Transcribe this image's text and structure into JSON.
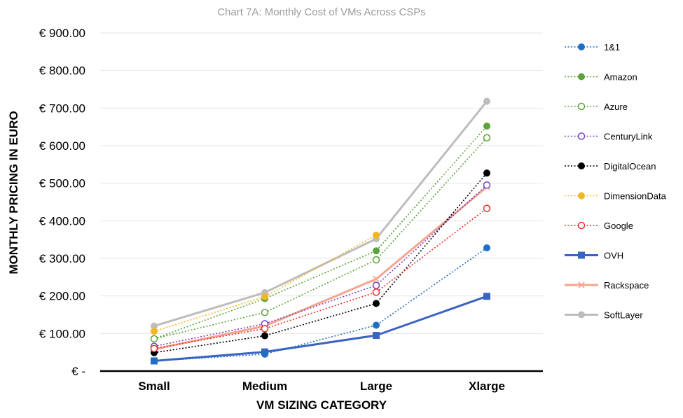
{
  "chart_data": {
    "type": "line",
    "title": "Chart 7A: Monthly Cost of VMs Across CSPs",
    "xlabel": "VM SIZING CATEGORY",
    "ylabel": "MONTHLY PRICING IN EURO",
    "categories": [
      "Small",
      "Medium",
      "Large",
      "Xlarge"
    ],
    "ylim": [
      0,
      900
    ],
    "yticks": [
      0,
      100,
      200,
      300,
      400,
      500,
      600,
      700,
      800,
      900
    ],
    "ytick_labels": [
      "€ -",
      "€ 100.00",
      "€ 200.00",
      "€ 300.00",
      "€ 400.00",
      "€ 500.00",
      "€ 600.00",
      "€ 700.00",
      "€ 800.00",
      "€ 900.00"
    ],
    "grid": true,
    "legend_position": "right",
    "series": [
      {
        "name": "1&1",
        "values": [
          27,
          45,
          122,
          328
        ],
        "color": "#1f6fc5",
        "style": "dotted",
        "marker": "filled-circle"
      },
      {
        "name": "Amazon",
        "values": [
          86,
          193,
          320,
          652
        ],
        "color": "#5ba33a",
        "style": "dotted",
        "marker": "filled-circle"
      },
      {
        "name": "Azure",
        "values": [
          86,
          156,
          296,
          621
        ],
        "color": "#5ba33a",
        "style": "dotted",
        "marker": "open-circle"
      },
      {
        "name": "CenturyLink",
        "values": [
          66,
          126,
          228,
          495
        ],
        "color": "#7b3fc4",
        "style": "dotted",
        "marker": "open-circle"
      },
      {
        "name": "DigitalOcean",
        "values": [
          49,
          94,
          180,
          527
        ],
        "color": "#000000",
        "style": "dotted",
        "marker": "filled-circle"
      },
      {
        "name": "DimensionData",
        "values": [
          106,
          198,
          362,
          null
        ],
        "color": "#f2b824",
        "style": "dotted",
        "marker": "filled-circle"
      },
      {
        "name": "Google",
        "values": [
          60,
          113,
          210,
          433
        ],
        "color": "#e8302a",
        "style": "dotted",
        "marker": "open-circle"
      },
      {
        "name": "OVH",
        "values": [
          27,
          51,
          95,
          199
        ],
        "color": "#3a63c2",
        "style": "solid",
        "marker": "filled-square"
      },
      {
        "name": "Rackspace",
        "values": [
          58,
          120,
          245,
          490
        ],
        "color": "#f4a58f",
        "style": "solid",
        "marker": "x"
      },
      {
        "name": "SoftLayer",
        "values": [
          120,
          209,
          352,
          718
        ],
        "color": "#bdbdbd",
        "style": "solid",
        "marker": "filled-circle"
      }
    ]
  }
}
